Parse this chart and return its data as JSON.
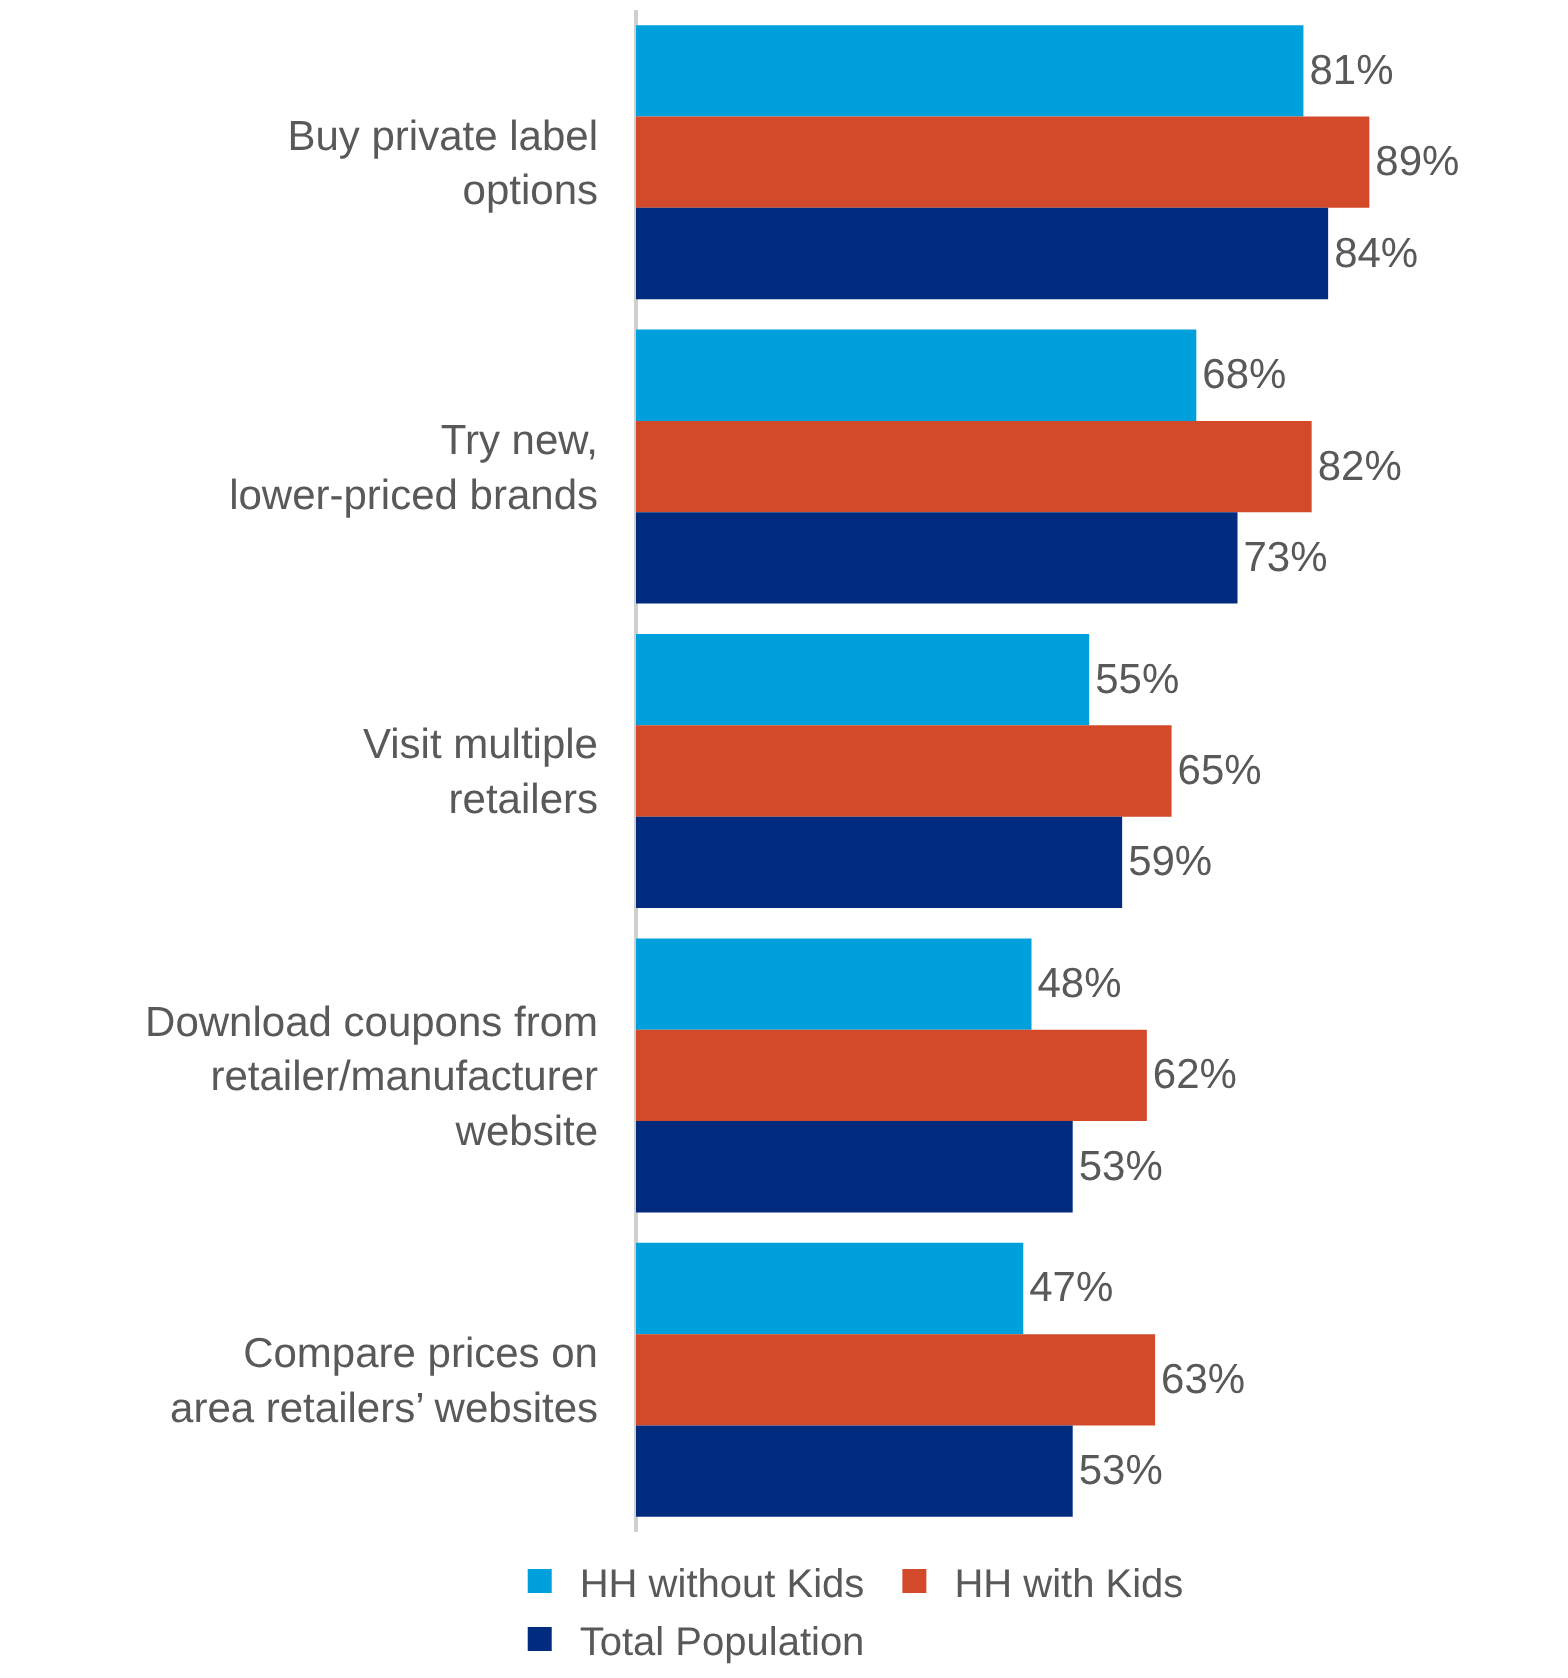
{
  "chart_data": {
    "type": "bar",
    "orientation": "horizontal",
    "categories": [
      "Buy private label\noptions",
      "Try new,\nlower-priced brands",
      "Visit multiple\nretailers",
      "Download coupons from\nretailer/manufacturer\nwebsite",
      "Compare prices on\narea retailers’ websites"
    ],
    "series": [
      {
        "name": "HH without Kids",
        "color": "#00a0dc",
        "values": [
          81,
          68,
          55,
          48,
          47
        ],
        "value_labels": [
          "81%",
          "68%",
          "55%",
          "48%",
          "47%"
        ]
      },
      {
        "name": "HH with Kids",
        "color": "#d24a2a",
        "values": [
          89,
          82,
          65,
          62,
          63
        ],
        "value_labels": [
          "89%",
          "82%",
          "65%",
          "62%",
          "63%"
        ]
      },
      {
        "name": "Total Population",
        "color": "#002b7f",
        "values": [
          84,
          73,
          59,
          53,
          53
        ],
        "value_labels": [
          "84%",
          "73%",
          "59%",
          "53%",
          "53%"
        ]
      }
    ],
    "legend": "bottom"
  }
}
